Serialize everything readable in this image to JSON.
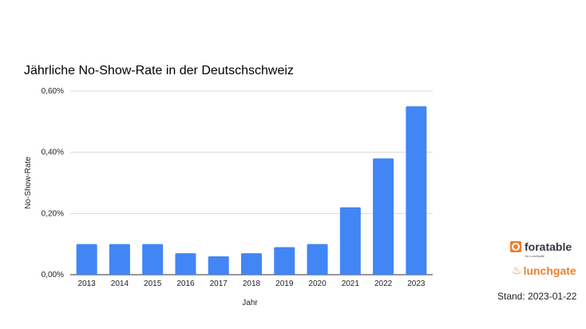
{
  "chart_data": {
    "type": "bar",
    "title": "Jährliche No-Show-Rate in der Deutschschweiz",
    "xlabel": "Jahr",
    "ylabel": "No-Show-Rate",
    "categories": [
      "2013",
      "2014",
      "2015",
      "2016",
      "2017",
      "2018",
      "2019",
      "2020",
      "2021",
      "2022",
      "2023"
    ],
    "values": [
      0.1,
      0.1,
      0.1,
      0.07,
      0.06,
      0.07,
      0.09,
      0.1,
      0.22,
      0.38,
      0.55
    ],
    "unit": "%",
    "ylim": [
      0,
      0.6
    ],
    "yticks": [
      {
        "v": 0,
        "label": "0,00%"
      },
      {
        "v": 0.2,
        "label": "0,20%"
      },
      {
        "v": 0.4,
        "label": "0,40%"
      },
      {
        "v": 0.6,
        "label": "0,60%"
      }
    ],
    "grid": true,
    "legend": "none",
    "bar_color": "#4285f4"
  },
  "branding": {
    "logo1": "foratable",
    "logo1_sub": "by Lunchgate",
    "logo2": "lunchgate",
    "logo_color": "#f07f2d"
  },
  "stand": "Stand: 2023-01-22"
}
